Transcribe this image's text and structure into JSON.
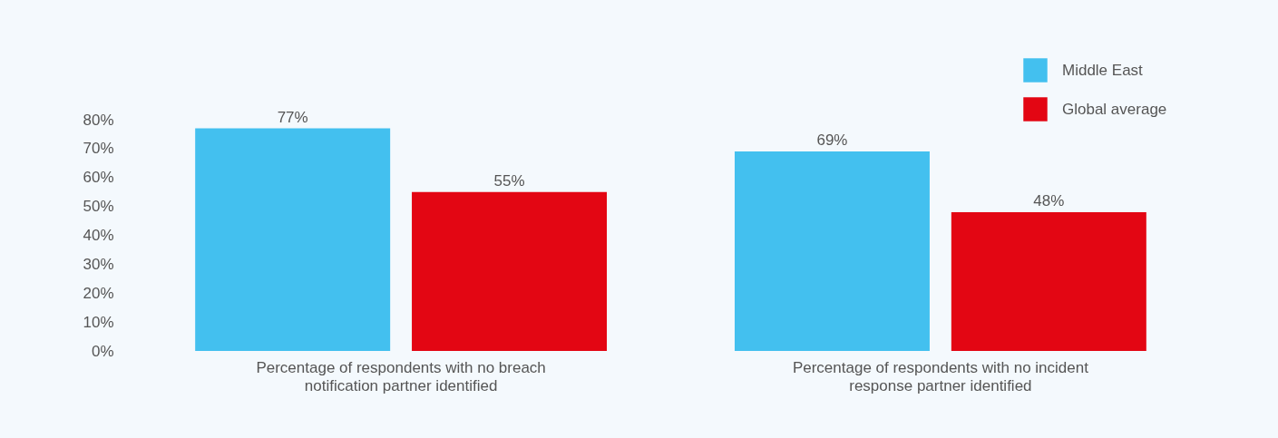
{
  "chart_data": {
    "type": "bar",
    "categories": [
      "Percentage of respondents with no breach notification partner identified",
      "Percentage of respondents with no incident response partner identified"
    ],
    "series": [
      {
        "name": "Middle East",
        "color": "#43c0ef",
        "values": [
          77,
          69
        ],
        "value_labels": [
          "77%",
          "69%"
        ]
      },
      {
        "name": "Global average",
        "color": "#e30613",
        "values": [
          55,
          48
        ],
        "value_labels": [
          "55%",
          "48%"
        ]
      }
    ],
    "ylim": [
      0,
      80
    ],
    "yticks": [
      {
        "value": 0,
        "label": "0%"
      },
      {
        "value": 10,
        "label": "10%"
      },
      {
        "value": 20,
        "label": "20%"
      },
      {
        "value": 30,
        "label": "30%"
      },
      {
        "value": 40,
        "label": "40%"
      },
      {
        "value": 50,
        "label": "50%"
      },
      {
        "value": 60,
        "label": "60%"
      },
      {
        "value": 70,
        "label": "70%"
      },
      {
        "value": 80,
        "label": "80%"
      }
    ],
    "grid": false,
    "legend": "top right"
  }
}
